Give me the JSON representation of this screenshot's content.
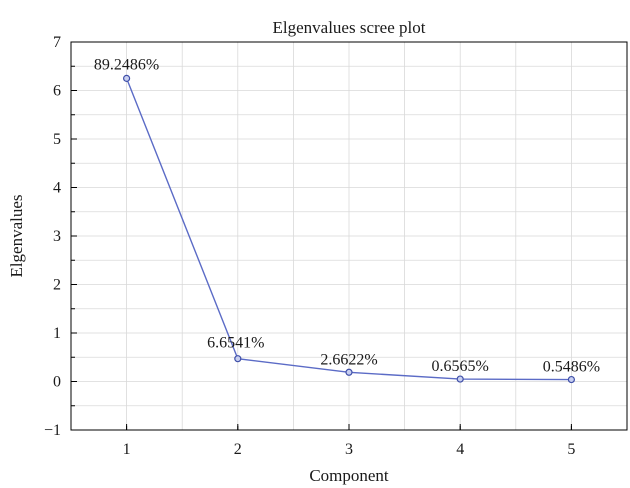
{
  "chart_data": {
    "type": "line",
    "title": "Elgenvalues scree plot",
    "xlabel": "Component",
    "ylabel": "Elgenvalues",
    "x": [
      1,
      2,
      3,
      4,
      5
    ],
    "series": [
      {
        "values": [
          6.25,
          0.47,
          0.19,
          0.05,
          0.04
        ],
        "labels": [
          "89.2486%",
          "6.6541%",
          "2.6622%",
          "0.6565%",
          "0.5486%"
        ]
      }
    ],
    "xticks": [
      1,
      2,
      3,
      4,
      5
    ],
    "yticks": [
      -1,
      0,
      1,
      2,
      3,
      4,
      5,
      6,
      7
    ],
    "xlim": [
      0.5,
      5.5
    ],
    "ylim": [
      -1,
      7
    ],
    "grid": true,
    "line_color": "#5b6bc6",
    "marker_color": "#3f4fa8",
    "marker_fill": "#c8cff0"
  }
}
